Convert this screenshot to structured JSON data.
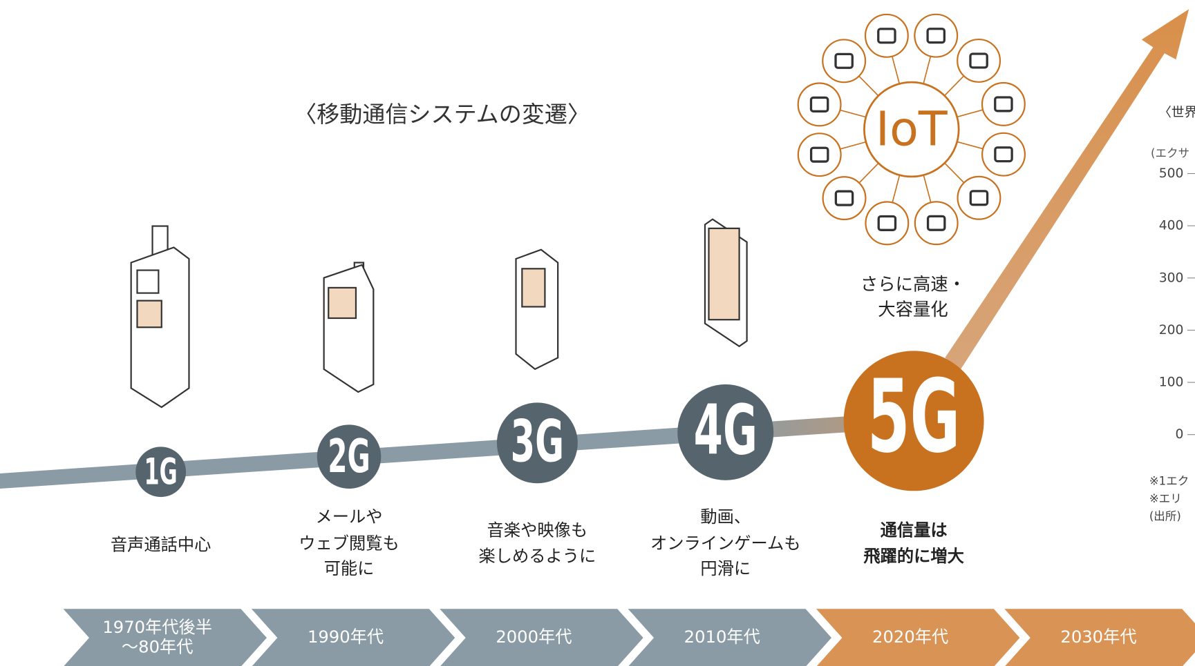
{
  "title": "〈移動通信システムの変遷〉",
  "iot": {
    "label": "IoT"
  },
  "tagline": [
    "さらに高速・",
    "大容量化"
  ],
  "generations": [
    {
      "label": "1G",
      "description": [
        "音声通話中心"
      ]
    },
    {
      "label": "2G",
      "description": [
        "メールや",
        "ウェブ閲覧も",
        "可能に"
      ]
    },
    {
      "label": "3G",
      "description": [
        "音楽や映像も",
        "楽しめるように"
      ]
    },
    {
      "label": "4G",
      "description": [
        "動画、",
        "オンラインゲームも",
        "円滑に"
      ]
    },
    {
      "label": "5G",
      "description": [
        "通信量は",
        "飛躍的に増大"
      ]
    }
  ],
  "eras": [
    [
      "1970年代後半",
      "〜80年代"
    ],
    [
      "1990年代"
    ],
    [
      "2000年代"
    ],
    [
      "2010年代"
    ],
    [
      "2020年代"
    ],
    [
      "2030年代"
    ]
  ],
  "side_chart": {
    "title": "〈世界",
    "unit": "(エクサ",
    "yticks": [
      500,
      400,
      300,
      200,
      100,
      0
    ],
    "notes": [
      "※1エク",
      "※エリ",
      "(出所)"
    ]
  }
}
